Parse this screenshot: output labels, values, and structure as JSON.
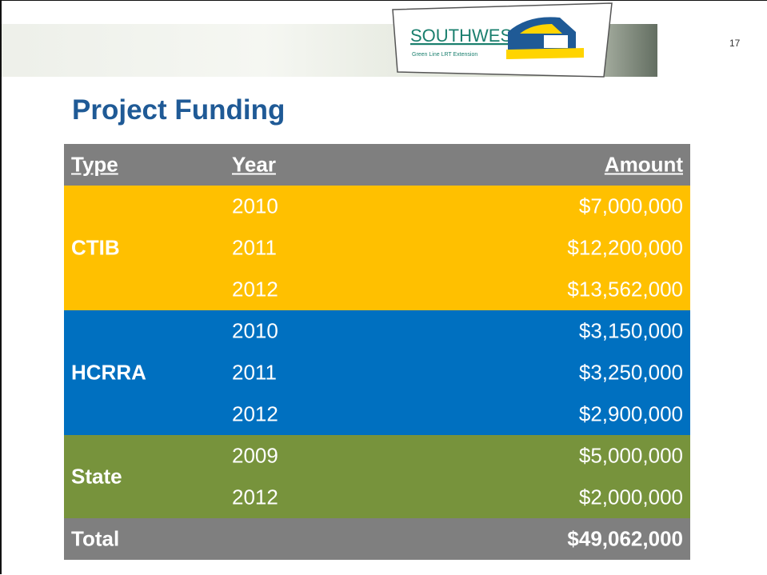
{
  "header": {
    "slide_number": "17",
    "logo": {
      "name": "SOUTHWEST",
      "tagline": "Green Line LRT Extension"
    }
  },
  "title": "Project Funding",
  "table": {
    "columns": [
      "Type",
      "Year",
      "Amount"
    ],
    "groups": [
      {
        "type": "CTIB",
        "rows": [
          [
            "2010",
            "$7,000,000"
          ],
          [
            "2011",
            "$12,200,000"
          ],
          [
            "2012",
            "$13,562,000"
          ]
        ]
      },
      {
        "type": "HCRRA",
        "rows": [
          [
            "2010",
            "$3,150,000"
          ],
          [
            "2011",
            "$3,250,000"
          ],
          [
            "2012",
            "$2,900,000"
          ]
        ]
      },
      {
        "type": "State",
        "rows": [
          [
            "2009",
            "$5,000,000"
          ],
          [
            "2012",
            "$2,000,000"
          ]
        ]
      }
    ],
    "total": {
      "label": "Total",
      "amount": "$49,062,000"
    }
  }
}
